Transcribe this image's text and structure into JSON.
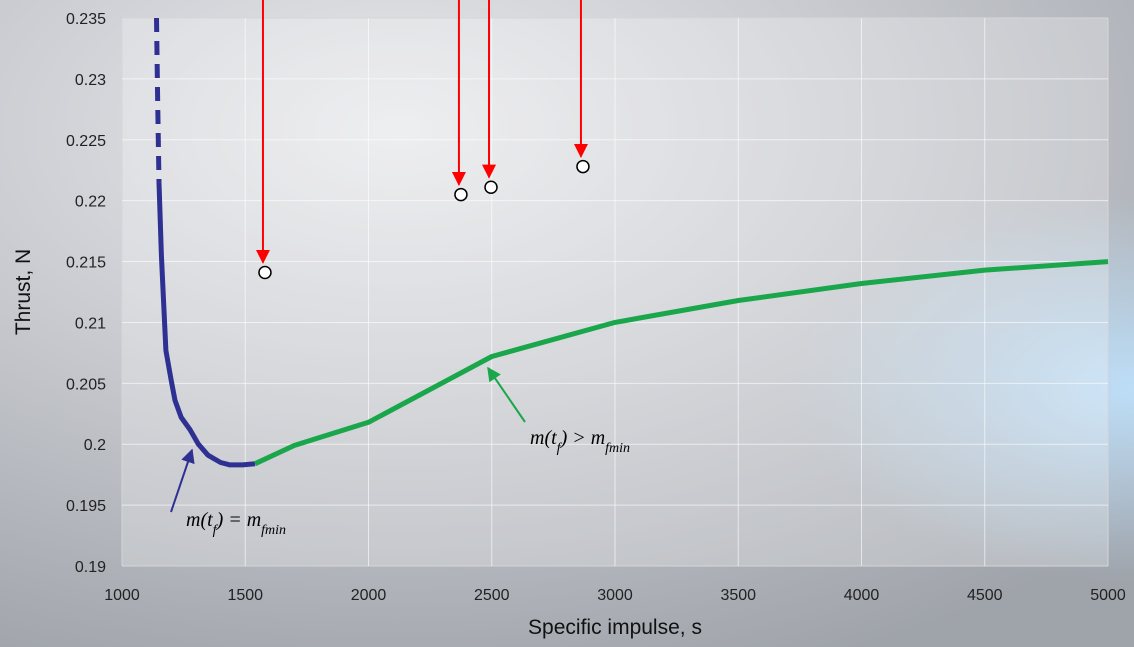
{
  "chart_data": {
    "type": "line",
    "xlabel": "Specific impulse, s",
    "ylabel": "Thrust, N",
    "xlim": [
      1000,
      5000
    ],
    "xticks": [
      1000,
      1500,
      2000,
      2500,
      3000,
      3500,
      4000,
      4500,
      5000
    ],
    "ylim": [
      0.19,
      0.235
    ],
    "yticks": [
      0.19,
      0.195,
      0.2,
      0.205,
      0.21,
      0.215,
      0.22,
      0.225,
      0.23,
      0.235
    ],
    "grid": true,
    "series": [
      {
        "color": "#2e3192",
        "dash": true,
        "x": [
          1140,
          1145,
          1150
        ],
        "values": [
          0.235,
          0.228,
          0.2215
        ]
      },
      {
        "color": "#2e3192",
        "dash": false,
        "x": [
          1150,
          1160,
          1178,
          1200,
          1215,
          1240,
          1276,
          1310,
          1349,
          1400,
          1438,
          1490,
          1540
        ],
        "values": [
          0.2215,
          0.2155,
          0.2077,
          0.2052,
          0.2036,
          0.2022,
          0.2012,
          0.2,
          0.1991,
          0.1985,
          0.1983,
          0.1983,
          0.1984
        ]
      },
      {
        "color": "#1aa64a",
        "dash": false,
        "x": [
          1540,
          1700,
          2000,
          2500,
          3000,
          3500,
          4000,
          4500,
          5000
        ],
        "values": [
          0.1984,
          0.1999,
          0.2018,
          0.2072,
          0.21,
          0.2118,
          0.2132,
          0.2143,
          0.215
        ]
      }
    ],
    "points": {
      "color": "#ffffff",
      "arrow_color": "#ff0000",
      "x": [
        1580,
        2375,
        2497,
        2870
      ],
      "values": [
        0.2141,
        0.2205,
        0.2211,
        0.2228
      ]
    },
    "annotations": [
      {
        "parts": [
          "m(t",
          "f",
          ") = m",
          "fmin"
        ],
        "color": "#2e3192"
      },
      {
        "parts": [
          "m(t",
          "f",
          ") > m",
          "fmin"
        ],
        "color": "#1aa64a"
      }
    ]
  }
}
